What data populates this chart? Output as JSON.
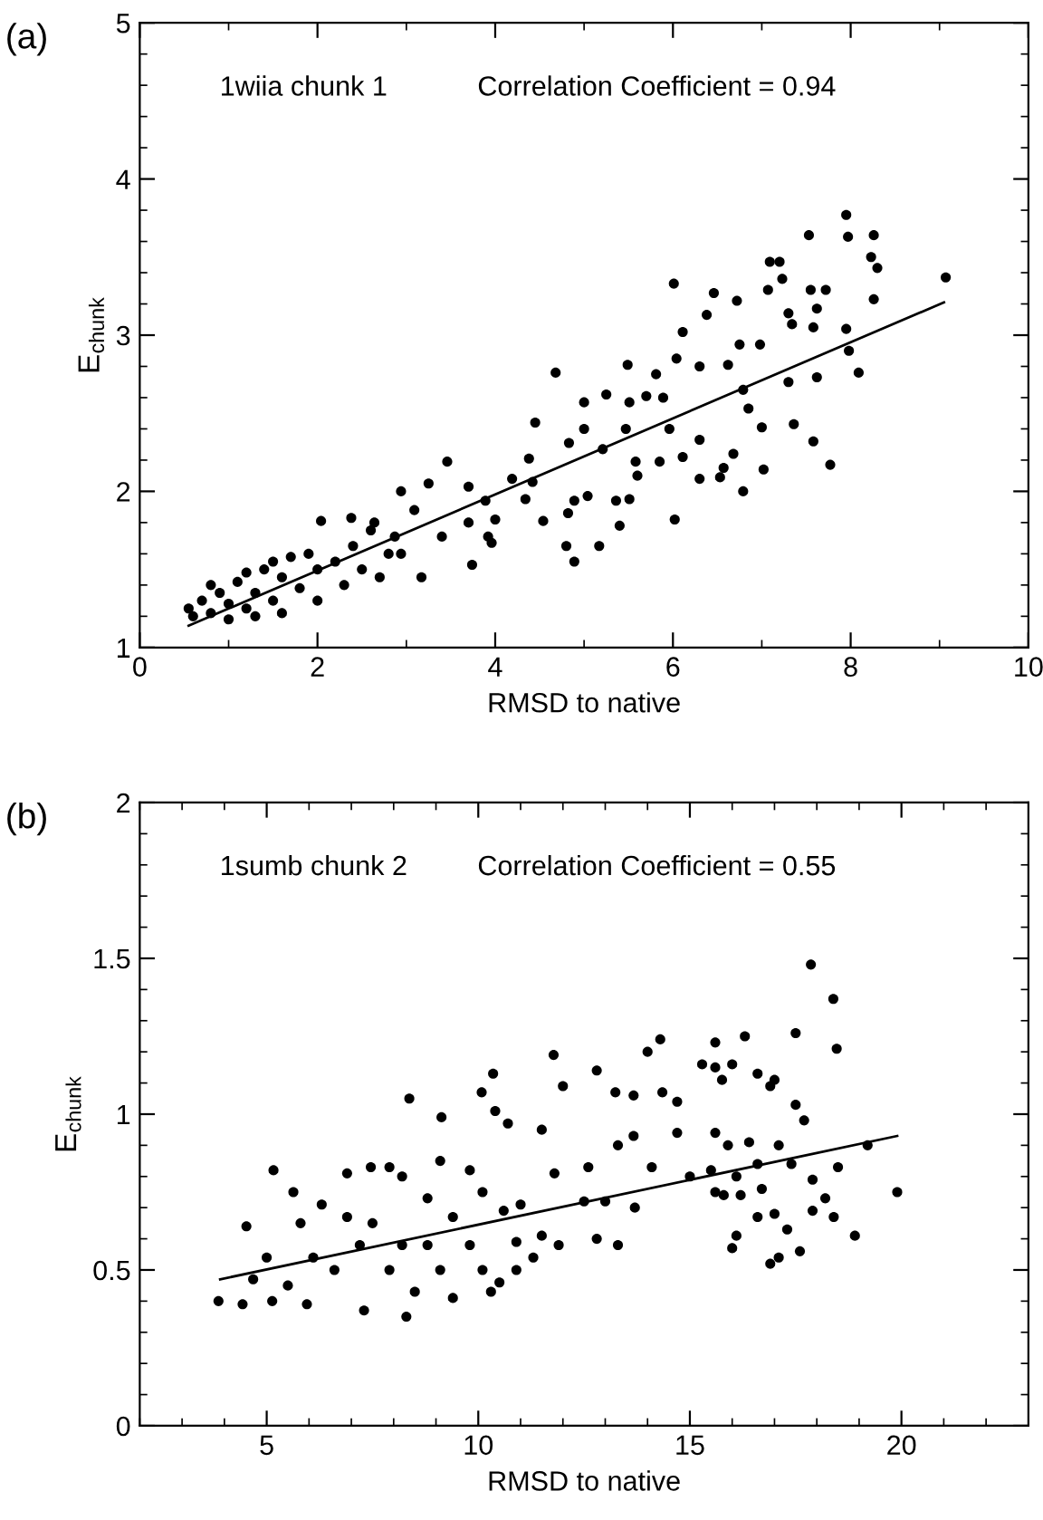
{
  "chart_data": [
    {
      "type": "scatter",
      "title": "(a)",
      "xlabel": "RMSD to native",
      "ylabel": "E$_{chunk}$",
      "annotations": [
        "1wiia chunk 1",
        "Correlation Coefficient = 0.94"
      ],
      "xlim": [
        0,
        10
      ],
      "ylim": [
        1,
        5
      ],
      "xticks": [
        0,
        2,
        4,
        6,
        8,
        10
      ],
      "yticks": [
        1,
        2,
        3,
        4,
        5
      ],
      "grid": false,
      "legend": false,
      "series": [
        {
          "marker": "circle",
          "color": "#000000",
          "x": [
            7.95,
            7.53,
            7.97,
            8.26,
            8.23,
            8.3,
            9.07,
            7.09,
            7.2,
            7.23,
            7.07,
            7.55,
            7.72,
            6.01,
            6.46,
            6.72,
            8.26,
            7.3,
            7.34,
            7.62,
            7.58,
            7.95,
            6.11,
            6.38,
            6.98,
            6.75,
            7.98,
            8.09,
            7.62,
            7.3,
            4.68,
            5.49,
            5.81,
            6.04,
            6.3,
            6.62,
            6.79,
            6.85,
            7.36,
            7.58,
            7.77,
            7.02,
            6.79,
            6.3,
            6.53,
            6.68,
            6.57,
            7.0,
            6.3,
            6.11,
            5.96,
            5.89,
            5.7,
            5.51,
            5.25,
            5.47,
            5.85,
            6.02,
            5.36,
            5.51,
            5.4,
            5.17,
            5.0,
            4.83,
            5.0,
            5.21,
            5.58,
            5.6,
            4.89,
            4.82,
            4.8,
            4.89,
            5.04,
            4.45,
            4.38,
            4.34,
            4.54,
            4.19,
            4.42,
            3.46,
            3.7,
            3.89,
            3.92,
            3.96,
            3.74,
            4.0,
            3.7,
            3.4,
            3.25,
            2.94,
            3.09,
            2.87,
            2.94,
            3.17,
            2.64,
            2.38,
            2.04,
            0.55,
            0.6,
            0.7,
            0.8,
            0.9,
            1.0,
            1.0,
            1.1,
            1.2,
            1.3,
            1.3,
            1.4,
            1.5,
            1.6,
            1.6,
            1.7,
            1.8,
            1.9,
            2.0,
            2.0,
            2.2,
            2.3,
            2.4,
            2.5,
            2.6,
            2.7,
            2.8,
            1.2,
            0.8,
            1.5
          ],
          "values": [
            3.77,
            3.64,
            3.63,
            3.64,
            3.5,
            3.43,
            3.37,
            3.47,
            3.47,
            3.36,
            3.29,
            3.29,
            3.29,
            3.33,
            3.27,
            3.22,
            3.23,
            3.14,
            3.07,
            3.17,
            3.05,
            3.04,
            3.02,
            3.13,
            2.94,
            2.94,
            2.9,
            2.76,
            2.73,
            2.7,
            2.76,
            2.81,
            2.75,
            2.85,
            2.8,
            2.81,
            2.65,
            2.53,
            2.43,
            2.32,
            2.17,
            2.14,
            2.0,
            2.08,
            2.09,
            2.24,
            2.15,
            2.41,
            2.33,
            2.22,
            2.4,
            2.6,
            2.61,
            2.57,
            2.62,
            2.4,
            2.19,
            1.82,
            1.94,
            1.95,
            1.78,
            1.65,
            2.57,
            2.31,
            2.4,
            2.27,
            2.19,
            2.1,
            1.94,
            1.86,
            1.65,
            1.55,
            1.97,
            2.44,
            2.21,
            1.95,
            1.81,
            2.08,
            2.06,
            2.19,
            2.03,
            1.94,
            1.71,
            1.67,
            1.53,
            1.82,
            1.8,
            1.71,
            2.05,
            2.0,
            1.88,
            1.71,
            1.6,
            1.45,
            1.8,
            1.83,
            1.81,
            1.25,
            1.2,
            1.3,
            1.22,
            1.35,
            1.18,
            1.28,
            1.42,
            1.25,
            1.35,
            1.2,
            1.5,
            1.3,
            1.45,
            1.22,
            1.58,
            1.38,
            1.6,
            1.5,
            1.3,
            1.55,
            1.4,
            1.65,
            1.5,
            1.75,
            1.45,
            1.6,
            1.48,
            1.4,
            1.55
          ]
        },
        {
          "type": "line",
          "color": "#000000",
          "x": [
            0.55,
            9.05
          ],
          "values": [
            1.14,
            3.21
          ]
        }
      ]
    },
    {
      "type": "scatter",
      "title": "(b)",
      "xlabel": "RMSD to native",
      "ylabel": "E$_{chunk}$",
      "annotations": [
        "1sumb chunk 2",
        "Correlation Coefficient = 0.55"
      ],
      "xlim": [
        2,
        23
      ],
      "ylim": [
        0,
        2
      ],
      "xticks": [
        5,
        10,
        15,
        20
      ],
      "yticks": [
        0,
        0.5,
        1,
        1.5,
        2
      ],
      "grid": false,
      "legend": false,
      "series": [
        {
          "marker": "circle",
          "color": "#000000",
          "x": [
            17.86,
            18.39,
            18.47,
            17.5,
            16.3,
            15.6,
            14.3,
            14.0,
            11.78,
            10.35,
            10.08,
            8.37,
            12.0,
            12.8,
            15.29,
            15.6,
            15.76,
            16.0,
            16.6,
            16.9,
            17.0,
            17.5,
            17.7,
            13.24,
            13.67,
            14.35,
            14.7,
            9.13,
            10.4,
            10.7,
            11.5,
            13.3,
            13.67,
            14.7,
            15.6,
            15.9,
            16.4,
            17.1,
            19.2,
            18.5,
            17.4,
            16.6,
            15.5,
            15.0,
            14.1,
            16.1,
            15.6,
            15.8,
            16.2,
            16.7,
            19.9,
            17.9,
            18.2,
            17.9,
            18.4,
            17.0,
            17.3,
            16.6,
            16.1,
            16.0,
            17.6,
            17.1,
            16.9,
            18.9,
            13.7,
            13.3,
            12.8,
            12.5,
            12.6,
            13.0,
            11.8,
            11.9,
            11.5,
            11.3,
            10.9,
            10.5,
            10.9,
            3.86,
            4.43,
            5.13,
            5.16,
            4.52,
            5.0,
            4.68,
            5.63,
            5.8,
            5.95,
            6.6,
            6.1,
            6.9,
            7.3,
            7.46,
            7.5,
            7.9,
            8.2,
            8.3,
            8.5,
            8.8,
            9.1,
            9.4,
            9.8,
            10.1,
            10.3,
            10.1,
            9.8,
            9.1,
            10.6,
            11.0,
            9.4,
            6.9,
            5.5,
            8.2,
            8.8,
            7.9,
            6.3,
            7.2
          ],
          "values": [
            1.48,
            1.37,
            1.21,
            1.26,
            1.25,
            1.23,
            1.24,
            1.2,
            1.19,
            1.13,
            1.07,
            1.05,
            1.09,
            1.14,
            1.16,
            1.15,
            1.11,
            1.16,
            1.13,
            1.09,
            1.11,
            1.03,
            0.98,
            1.07,
            1.06,
            1.07,
            1.04,
            0.99,
            1.01,
            0.97,
            0.95,
            0.9,
            0.93,
            0.94,
            0.94,
            0.9,
            0.91,
            0.9,
            0.9,
            0.83,
            0.84,
            0.84,
            0.82,
            0.8,
            0.83,
            0.8,
            0.75,
            0.74,
            0.74,
            0.76,
            0.75,
            0.79,
            0.73,
            0.69,
            0.67,
            0.68,
            0.63,
            0.67,
            0.61,
            0.57,
            0.56,
            0.54,
            0.52,
            0.61,
            0.7,
            0.58,
            0.6,
            0.72,
            0.83,
            0.72,
            0.81,
            0.58,
            0.61,
            0.54,
            0.5,
            0.46,
            0.59,
            0.4,
            0.39,
            0.4,
            0.82,
            0.64,
            0.54,
            0.47,
            0.75,
            0.65,
            0.39,
            0.5,
            0.54,
            0.81,
            0.37,
            0.83,
            0.65,
            0.83,
            0.8,
            0.35,
            0.43,
            0.58,
            0.5,
            0.67,
            0.58,
            0.5,
            0.43,
            0.75,
            0.82,
            0.85,
            0.69,
            0.71,
            0.41,
            0.67,
            0.45,
            0.58,
            0.73,
            0.5,
            0.71,
            0.58
          ]
        },
        {
          "type": "line",
          "color": "#000000",
          "x": [
            3.9,
            19.9
          ],
          "values": [
            0.47,
            0.93
          ]
        }
      ]
    }
  ]
}
